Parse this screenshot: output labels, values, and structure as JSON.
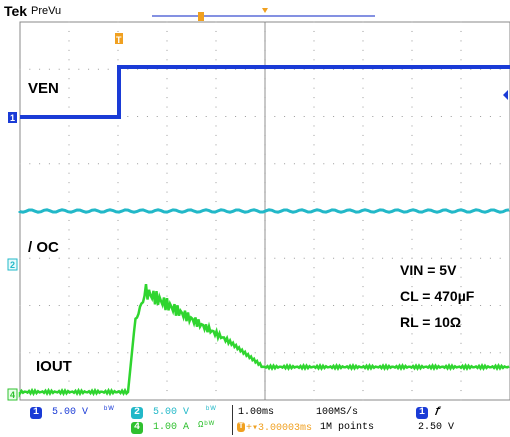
{
  "header": {
    "brand": "Tek",
    "mode": "PreVu"
  },
  "channels": {
    "ch1": {
      "number": "1",
      "scale": "5.00 V",
      "color": "#1a3bd6"
    },
    "ch2": {
      "number": "2",
      "scale": "5.00 V",
      "color": "#22b8c8"
    },
    "ch4": {
      "number": "4",
      "scale": "1.00 A",
      "color": "#2fc02f"
    }
  },
  "markers": {
    "trigger": "T",
    "ch1": "1",
    "ch2": "2",
    "ch4": "4"
  },
  "labels": {
    "ven": "VEN",
    "oc": "/ OC",
    "iout": "IOUT"
  },
  "annotations": {
    "vin": "VIN = 5V",
    "cl": "CL = 470µF",
    "rl": "RL = 10Ω"
  },
  "timebase": {
    "scale": "1.00ms",
    "sample_rate": "100MS/s",
    "position": "+▾3.00003ms",
    "record_length": "1M points"
  },
  "trigger": {
    "source": "1",
    "slope": "ƒ",
    "level": "2.50 V"
  },
  "icons": {
    "bw": "ᵇᵂ",
    "ch4_icon": "Ωᵇᵂ"
  }
}
